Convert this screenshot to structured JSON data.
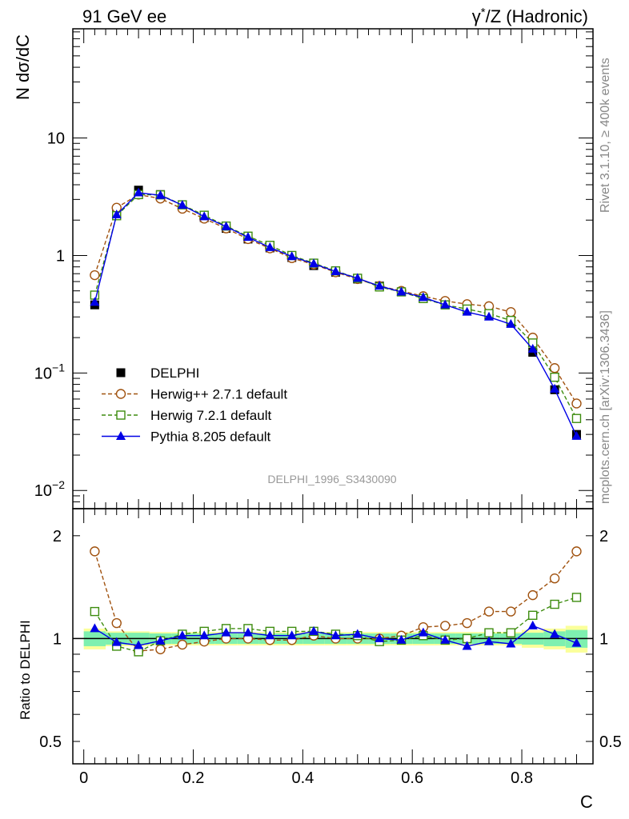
{
  "header": {
    "left_title": "91 GeV ee",
    "right_title_prefix": "γ",
    "right_title_star": "*",
    "right_title_suffix": "/Z (Hadronic)"
  },
  "side_labels": {
    "rivet": "Rivet 3.1.10, ≥ 400k events",
    "mcplots": "mcplots.cern.ch [arXiv:1306.3436]"
  },
  "watermark": "DELPHI_1996_S3430090",
  "colors": {
    "data": "#000000",
    "herwigpp": "#a0520f",
    "herwig7": "#3d8c0e",
    "pythia": "#0000e6",
    "band_inner": "#7ef0b0",
    "band_outer": "#fbff9a"
  },
  "chart_data": [
    {
      "type": "scatter",
      "title": "",
      "xlabel": "C",
      "ylabel": "N dσ/dC",
      "yscale": "log",
      "xlim": [
        -0.02,
        0.93
      ],
      "ylim": [
        0.007,
        85
      ],
      "y_ticks": [
        {
          "value": 10,
          "label": "10"
        },
        {
          "value": 1,
          "label": "1"
        },
        {
          "value": 0.1,
          "base": "10",
          "exp": "−1"
        },
        {
          "value": 0.01,
          "base": "10",
          "exp": "−2"
        }
      ],
      "x": [
        0.02,
        0.06,
        0.1,
        0.14,
        0.18,
        0.22,
        0.26,
        0.3,
        0.34,
        0.38,
        0.42,
        0.46,
        0.5,
        0.54,
        0.58,
        0.62,
        0.66,
        0.7,
        0.74,
        0.78,
        0.82,
        0.86,
        0.9
      ],
      "series": [
        {
          "name": "DELPHI",
          "key": "data",
          "style": "square-filled",
          "values": [
            0.38,
            2.3,
            3.6,
            3.3,
            2.62,
            2.1,
            1.7,
            1.38,
            1.16,
            0.96,
            0.82,
            0.72,
            0.63,
            0.55,
            0.49,
            0.43,
            0.385,
            0.345,
            0.31,
            0.27,
            0.15,
            0.072,
            0.03
          ]
        },
        {
          "name": "Herwig++ 2.7.1 default",
          "key": "herwigpp",
          "style": "circle-open-dashed",
          "values": [
            0.68,
            2.55,
            3.3,
            3.05,
            2.5,
            2.06,
            1.7,
            1.38,
            1.15,
            0.95,
            0.84,
            0.72,
            0.63,
            0.55,
            0.5,
            0.45,
            0.41,
            0.385,
            0.37,
            0.33,
            0.2,
            0.11,
            0.055
          ]
        },
        {
          "name": "Herwig 7.2.1 default",
          "key": "herwig7",
          "style": "square-open-dashed",
          "values": [
            0.46,
            2.18,
            3.3,
            3.28,
            2.7,
            2.2,
            1.78,
            1.46,
            1.22,
            1.0,
            0.86,
            0.74,
            0.64,
            0.54,
            0.49,
            0.43,
            0.38,
            0.35,
            0.32,
            0.28,
            0.18,
            0.092,
            0.041
          ]
        },
        {
          "name": "Pythia 8.205 default",
          "key": "pythia",
          "style": "triangle-filled-solid",
          "values": [
            0.4,
            2.22,
            3.42,
            3.25,
            2.68,
            2.14,
            1.76,
            1.43,
            1.17,
            0.98,
            0.85,
            0.73,
            0.64,
            0.55,
            0.49,
            0.44,
            0.38,
            0.33,
            0.3,
            0.26,
            0.16,
            0.073,
            0.029
          ]
        }
      ]
    },
    {
      "type": "line",
      "xlabel": "C",
      "ylabel": "Ratio to DELPHI",
      "yscale": "log",
      "xlim": [
        -0.02,
        0.93
      ],
      "ylim": [
        0.43,
        2.4
      ],
      "x_ticks": [
        {
          "value": 0,
          "label": "0"
        },
        {
          "value": 0.2,
          "label": "0.2"
        },
        {
          "value": 0.4,
          "label": "0.4"
        },
        {
          "value": 0.6,
          "label": "0.6"
        },
        {
          "value": 0.8,
          "label": "0.8"
        }
      ],
      "y_ticks": [
        {
          "value": 2,
          "label": "2"
        },
        {
          "value": 1,
          "label": "1"
        },
        {
          "value": 0.5,
          "label": "0.5"
        }
      ],
      "x": [
        0.02,
        0.06,
        0.1,
        0.14,
        0.18,
        0.22,
        0.26,
        0.3,
        0.34,
        0.38,
        0.42,
        0.46,
        0.5,
        0.54,
        0.58,
        0.62,
        0.66,
        0.7,
        0.74,
        0.78,
        0.82,
        0.86,
        0.9
      ],
      "band_inner": [
        0.05,
        0.04,
        0.04,
        0.035,
        0.035,
        0.035,
        0.035,
        0.035,
        0.035,
        0.035,
        0.035,
        0.035,
        0.035,
        0.035,
        0.035,
        0.035,
        0.035,
        0.035,
        0.035,
        0.035,
        0.04,
        0.05,
        0.06
      ],
      "band_outer": [
        0.07,
        0.05,
        0.05,
        0.045,
        0.045,
        0.045,
        0.045,
        0.045,
        0.045,
        0.045,
        0.045,
        0.045,
        0.045,
        0.045,
        0.045,
        0.045,
        0.045,
        0.045,
        0.045,
        0.045,
        0.06,
        0.07,
        0.09
      ],
      "series": [
        {
          "name": "Herwig++ 2.7.1 default",
          "key": "herwigpp",
          "style": "circle-open-dashed",
          "values": [
            1.8,
            1.11,
            0.92,
            0.93,
            0.96,
            0.98,
            1.0,
            1.0,
            0.99,
            0.99,
            1.02,
            1.0,
            1.0,
            1.0,
            1.02,
            1.08,
            1.09,
            1.11,
            1.2,
            1.2,
            1.34,
            1.5,
            1.8
          ]
        },
        {
          "name": "Herwig 7.2.1 default",
          "key": "herwig7",
          "style": "square-open-dashed",
          "values": [
            1.2,
            0.95,
            0.915,
            0.985,
            1.03,
            1.05,
            1.07,
            1.07,
            1.05,
            1.05,
            1.05,
            1.03,
            1.02,
            0.98,
            0.99,
            1.02,
            0.99,
            1.0,
            1.04,
            1.04,
            1.17,
            1.26,
            1.32
          ]
        },
        {
          "name": "Pythia 8.205 default",
          "key": "pythia",
          "style": "triangle-filled-solid",
          "values": [
            1.07,
            0.975,
            0.955,
            0.985,
            1.02,
            1.02,
            1.04,
            1.04,
            1.02,
            1.02,
            1.05,
            1.02,
            1.03,
            1.0,
            0.99,
            1.04,
            0.99,
            0.95,
            0.98,
            0.965,
            1.09,
            1.03,
            0.97
          ]
        }
      ]
    }
  ]
}
